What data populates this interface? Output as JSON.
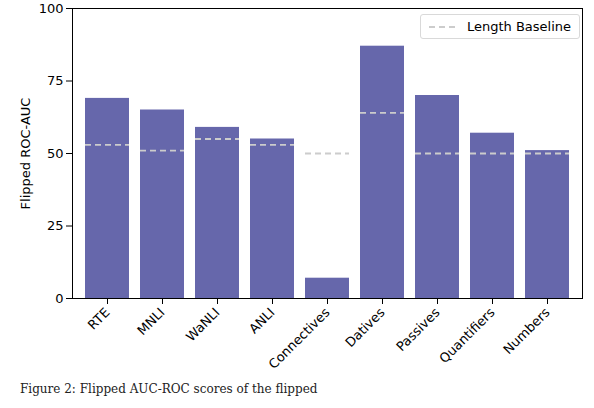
{
  "chart_data": {
    "type": "bar",
    "caption": "Figure 2: Flipped AUC-ROC scores of the flipped",
    "ylabel": "Flipped ROC-AUC",
    "categories": [
      "RTE",
      "MNLI",
      "WaNLI",
      "ANLI",
      "Connectives",
      "Datives",
      "Passives",
      "Quantifiers",
      "Numbers"
    ],
    "values": [
      69,
      65,
      59,
      55,
      7,
      87,
      70,
      57,
      51
    ],
    "color": "#6667ab",
    "series": [
      {
        "name": "Length Baseline",
        "type": "line",
        "line_style": "dashed",
        "color": "#cccccc",
        "values": [
          53,
          51,
          55,
          53,
          50,
          64,
          50,
          50,
          50
        ]
      }
    ],
    "legend": "upper right",
    "ylim": [
      0,
      100
    ],
    "yticks": [
      0,
      25,
      50,
      75,
      100
    ]
  }
}
